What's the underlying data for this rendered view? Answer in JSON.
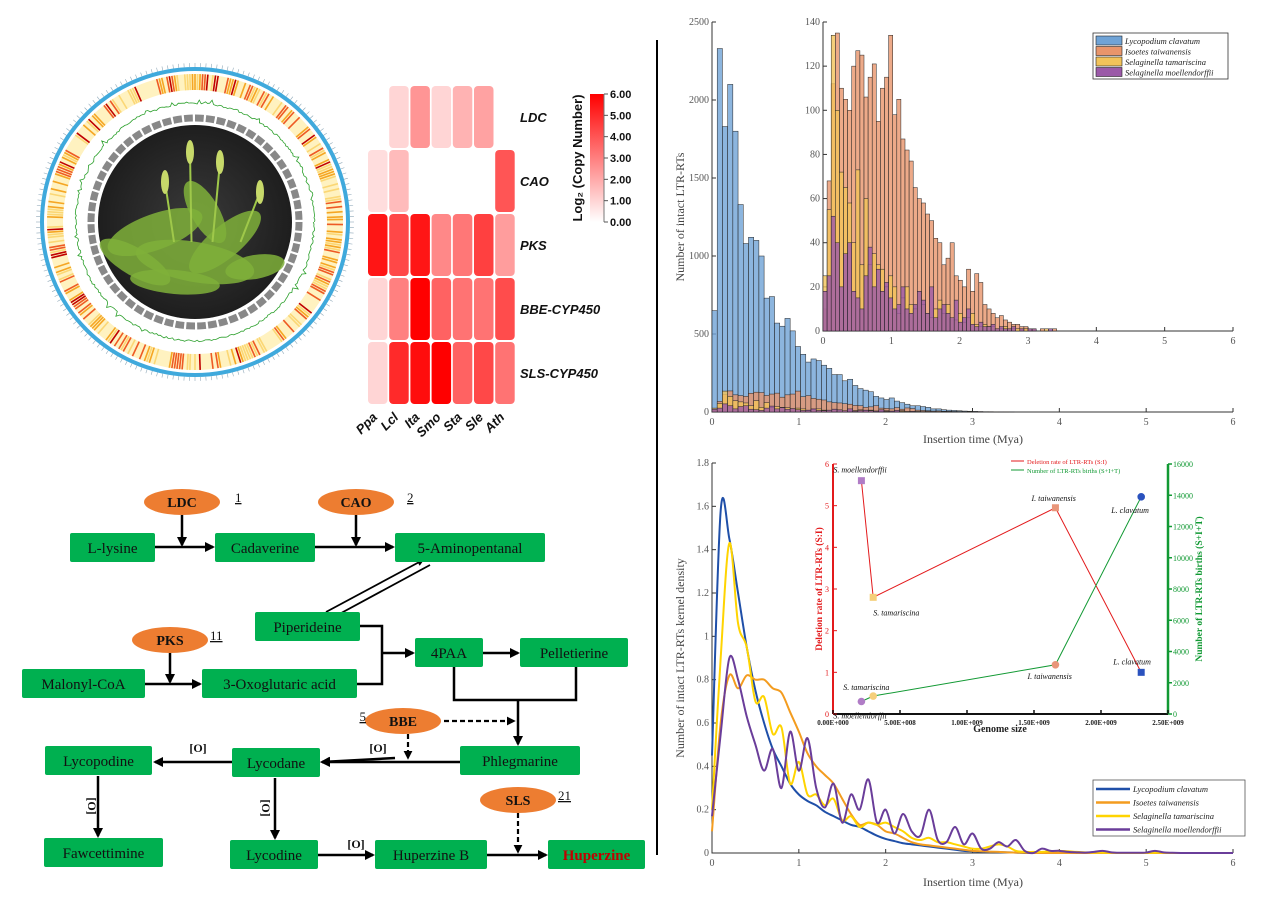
{
  "circos": {
    "center_image": "clubmoss-plant-photo",
    "ring_colors": {
      "outer": "#3fa9dc",
      "heat_low": "#fff2c0",
      "heat_high": "#c00000",
      "line": "#2ca02c",
      "gap": "#888888",
      "center": "#2b2b2b"
    }
  },
  "pathway": {
    "enzymes": [
      {
        "id": "ldc",
        "label": "LDC",
        "count": "1"
      },
      {
        "id": "cao",
        "label": "CAO",
        "count": "2"
      },
      {
        "id": "pks",
        "label": "PKS",
        "count": "11"
      },
      {
        "id": "bbe",
        "label": "BBE",
        "count": "5"
      },
      {
        "id": "sls",
        "label": "SLS",
        "count": "21"
      }
    ],
    "compounds": {
      "l_lysine": "L-lysine",
      "cadaverine": "Cadaverine",
      "aminopentanal": "5-Aminopentanal",
      "piperideine": "Piperideine",
      "malonyl_coa": "Malonyl-CoA",
      "oxoglutaric": "3-Oxoglutaric acid",
      "paa": "4PAA",
      "pelletierine": "Pelletierine",
      "phlegmarine": "Phlegmarine",
      "lycodane": "Lycodane",
      "lycopodine": "Lycopodine",
      "fawcettimine": "Fawcettimine",
      "lycodine": "Lycodine",
      "huperzine_b": "Huperzine B",
      "huperzine": "Huperzine"
    },
    "oxidation_label": "[O]",
    "colors": {
      "compound": "#00b050",
      "enzyme": "#ed7d31",
      "product_text": "#c00000"
    }
  },
  "chart_data": [
    {
      "type": "heatmap",
      "rows": [
        "LDC",
        "CAO",
        "PKS",
        "BBE-CYP450",
        "SLS-CYP450"
      ],
      "columns": [
        "Ppa",
        "Lcl",
        "Ita",
        "Smo",
        "Sta",
        "Sle",
        "Ath"
      ],
      "values": [
        [
          null,
          1.0,
          2.5,
          1.0,
          1.8,
          2.2,
          null
        ],
        [
          0.8,
          1.6,
          null,
          null,
          null,
          null,
          4.0
        ],
        [
          5.5,
          4.3,
          5.5,
          2.8,
          3.2,
          4.5,
          2.3
        ],
        [
          1.0,
          3.0,
          6.0,
          3.7,
          3.3,
          3.3,
          4.2
        ],
        [
          1.0,
          5.0,
          5.7,
          6.0,
          3.7,
          4.3,
          3.3
        ]
      ],
      "colorbar": {
        "label": "Log₂ (Copy Number)",
        "range": [
          0,
          6
        ],
        "ticks": [
          "0.00",
          "1.00",
          "2.00",
          "3.00",
          "4.00",
          "5.00",
          "6.00"
        ],
        "colors": [
          "#ffffff",
          "#ff0000"
        ]
      }
    },
    {
      "type": "bar",
      "xlabel": "Insertion time (Mya)",
      "ylabel": "Number of intact LTR-RTs",
      "xlim": [
        0,
        6
      ],
      "ylim": [
        0,
        2500
      ],
      "xticks": [
        "0",
        "1",
        "2",
        "3",
        "4",
        "5",
        "6"
      ],
      "yticks": [
        "0",
        "500",
        "1000",
        "1500",
        "2000",
        "2500"
      ],
      "bin_width": 0.06,
      "legend_position": "top-right",
      "series": [
        {
          "name": "Lycopodium clavatum",
          "color": "#6fa3d6",
          "values": [
            650,
            2330,
            1830,
            2100,
            1800,
            1330,
            1080,
            1120,
            1100,
            1000,
            730,
            740,
            570,
            550,
            600,
            520,
            420,
            370,
            320,
            340,
            330,
            300,
            280,
            240,
            240,
            200,
            210,
            170,
            150,
            140,
            130,
            100,
            90,
            80,
            90,
            70,
            60,
            50,
            40,
            40,
            35,
            30,
            20,
            20,
            15,
            12,
            10,
            8,
            6,
            5,
            4,
            3,
            2,
            2,
            1,
            1,
            1,
            1
          ]
        },
        {
          "name": "Isoetes taiwanensis",
          "color": "#e8956b",
          "values": [
            10,
            68,
            112,
            135,
            110,
            105,
            100,
            120,
            127,
            125,
            106,
            115,
            121,
            95,
            110,
            115,
            134,
            98,
            105,
            87,
            82,
            77,
            65,
            60,
            58,
            53,
            50,
            42,
            40,
            30,
            33,
            40,
            25,
            23,
            20,
            28,
            18,
            26,
            22,
            12,
            10,
            8,
            6,
            7,
            5,
            4,
            3,
            3,
            2,
            2,
            1,
            1,
            0,
            1,
            0,
            0,
            1,
            0
          ]
        },
        {
          "name": "Selaginella tamariscina",
          "color": "#f2c35a",
          "values": [
            25,
            55,
            134,
            100,
            72,
            65,
            58,
            40,
            73,
            30,
            60,
            30,
            35,
            30,
            28,
            20,
            25,
            20,
            8,
            15,
            20,
            12,
            10,
            18,
            12,
            8,
            6,
            10,
            14,
            8,
            12,
            6,
            5,
            8,
            4,
            6,
            8,
            3,
            2,
            3,
            2,
            2,
            1,
            1,
            2,
            1,
            1,
            1,
            0,
            1,
            0,
            1,
            0,
            0,
            1,
            0,
            0,
            0
          ]
        },
        {
          "name": "Selaginella moellendorffii",
          "color": "#9b59a8",
          "values": [
            18,
            25,
            52,
            40,
            20,
            35,
            40,
            18,
            15,
            10,
            25,
            38,
            20,
            28,
            18,
            22,
            15,
            10,
            12,
            20,
            10,
            8,
            12,
            18,
            14,
            8,
            20,
            6,
            10,
            12,
            8,
            6,
            14,
            4,
            6,
            10,
            3,
            2,
            4,
            2,
            2,
            3,
            1,
            2,
            1,
            1,
            2,
            0,
            1,
            0,
            1,
            1,
            0,
            0,
            0,
            1,
            0,
            0
          ]
        }
      ],
      "inset": {
        "ylim": [
          0,
          140
        ],
        "yticks": [
          "0",
          "20",
          "40",
          "60",
          "80",
          "100",
          "120",
          "140"
        ],
        "xticks": [
          "0",
          "1",
          "2",
          "3",
          "4",
          "5",
          "6"
        ],
        "series_shown": [
          1,
          2,
          3
        ]
      }
    },
    {
      "type": "line",
      "xlabel": "Insertion time (Mya)",
      "ylabel": "Number of intact LTR-RTs kernel density",
      "xlim": [
        0,
        6
      ],
      "ylim": [
        0,
        1.8
      ],
      "xticks": [
        "0",
        "1",
        "2",
        "3",
        "4",
        "5",
        "6"
      ],
      "yticks": [
        "0",
        "0.2",
        "0.4",
        "0.6",
        "0.8",
        "1",
        "1.2",
        "1.4",
        "1.6",
        "1.8"
      ],
      "x_step": 0.1,
      "legend_position": "bottom-right",
      "series": [
        {
          "name": "Lycopodium clavatum",
          "color": "#1f4fa8",
          "values": [
            0.45,
            1.58,
            1.45,
            1.2,
            0.95,
            0.75,
            0.6,
            0.48,
            0.4,
            0.32,
            0.27,
            0.24,
            0.22,
            0.19,
            0.17,
            0.15,
            0.13,
            0.12,
            0.1,
            0.08,
            0.065,
            0.055,
            0.045,
            0.04,
            0.035,
            0.03,
            0.025,
            0.02,
            0.015,
            0.01,
            0.008,
            0.006,
            0.005,
            0.004,
            0.003,
            0.002,
            0,
            0,
            0,
            0,
            0,
            0,
            0,
            0,
            0,
            0,
            0,
            0,
            0,
            0,
            0,
            0,
            0,
            0,
            0,
            0,
            0,
            0,
            0,
            0,
            0
          ]
        },
        {
          "name": "Isoetes taiwanensis",
          "color": "#f39c1f",
          "values": [
            0.1,
            0.6,
            0.82,
            0.76,
            0.82,
            0.8,
            0.8,
            0.76,
            0.74,
            0.65,
            0.56,
            0.46,
            0.4,
            0.36,
            0.32,
            0.25,
            0.18,
            0.13,
            0.14,
            0.13,
            0.1,
            0.09,
            0.07,
            0.05,
            0.04,
            0.035,
            0.03,
            0.025,
            0.02,
            0.015,
            0.01,
            0.008,
            0.006,
            0.005,
            0.003,
            0.002,
            0.001,
            0,
            0,
            0,
            0,
            0,
            0,
            0,
            0,
            0,
            0,
            0,
            0,
            0,
            0,
            0,
            0,
            0,
            0,
            0,
            0,
            0,
            0,
            0,
            0
          ]
        },
        {
          "name": "Selaginella tamariscina",
          "color": "#ffd400",
          "values": [
            0.2,
            0.9,
            1.43,
            1.06,
            0.95,
            0.7,
            0.72,
            0.55,
            0.58,
            0.32,
            0.42,
            0.27,
            0.27,
            0.22,
            0.25,
            0.15,
            0.17,
            0.12,
            0.14,
            0.13,
            0.14,
            0.12,
            0.1,
            0.07,
            0.06,
            0.07,
            0.05,
            0.05,
            0.04,
            0.03,
            0.02,
            0.02,
            0.03,
            0.04,
            0.03,
            0.01,
            0.005,
            0.005,
            0.005,
            0.008,
            0.01,
            0.008,
            0.005,
            0.003,
            0.002,
            0.002,
            0.001,
            0,
            0,
            0,
            0,
            0.002,
            0.001,
            0,
            0,
            0,
            0,
            0,
            0,
            0,
            0
          ]
        },
        {
          "name": "Selaginella moellendorffii",
          "color": "#6a3d9a",
          "values": [
            0.17,
            0.55,
            0.9,
            0.8,
            0.63,
            0.5,
            0.38,
            0.48,
            0.3,
            0.56,
            0.38,
            0.53,
            0.3,
            0.21,
            0.32,
            0.14,
            0.27,
            0.2,
            0.34,
            0.14,
            0.2,
            0.09,
            0.18,
            0.1,
            0.08,
            0.2,
            0.06,
            0.05,
            0.12,
            0.04,
            0.09,
            0.02,
            0.02,
            0.05,
            0.03,
            0.06,
            0.01,
            0.0,
            0.02,
            0.01,
            0.01,
            0.005,
            0.003,
            0.002,
            0.005,
            0.01,
            0.003,
            0.001,
            0.001,
            0.001,
            0.002,
            0.01,
            0.003,
            0.001,
            0,
            0,
            0,
            0,
            0,
            0,
            0
          ]
        }
      ],
      "inset": {
        "type": "scatter",
        "xlabel": "Genome size",
        "ylabel_left": "Deletion rate of LTR-RTs (S:I)",
        "ylabel_right": "Number of LTR-RTs births (S+I+T)",
        "xlim": [
          0,
          2500000000
        ],
        "ylim_left": [
          0,
          6
        ],
        "ylim_right": [
          0,
          16000
        ],
        "xticks": [
          "0.00E+000",
          "5.00E+008",
          "1.00E+009",
          "1.50E+009",
          "2.00E+009",
          "2.50E+009"
        ],
        "yticks_left": [
          "0",
          "1",
          "2",
          "3",
          "4",
          "5",
          "6"
        ],
        "yticks_right": [
          "0",
          "2000",
          "4000",
          "6000",
          "8000",
          "10000",
          "12000",
          "14000",
          "16000"
        ],
        "legend": [
          {
            "name": "Deletion rate of LTR-RTs (S:I)",
            "color": "#e31a1c"
          },
          {
            "name": "Number of LTR-RTs births (S+I+T)",
            "color": "#119933"
          }
        ],
        "points": [
          {
            "label": "S. moellendorffii",
            "genome_size": 212000000,
            "deletion_rate": 5.6,
            "births": 800,
            "color": "#b07cc6"
          },
          {
            "label": "S. tamariscina",
            "genome_size": 300000000,
            "deletion_rate": 2.8,
            "births": 1150,
            "color": "#f5cf7a"
          },
          {
            "label": "I. taiwanensis",
            "genome_size": 1660000000,
            "deletion_rate": 4.95,
            "births": 3150,
            "color": "#e9967a"
          },
          {
            "label": "L. clavatum",
            "genome_size": 2300000000,
            "deletion_rate": 1.0,
            "births": 13900,
            "color": "#2a52be"
          }
        ]
      }
    }
  ]
}
